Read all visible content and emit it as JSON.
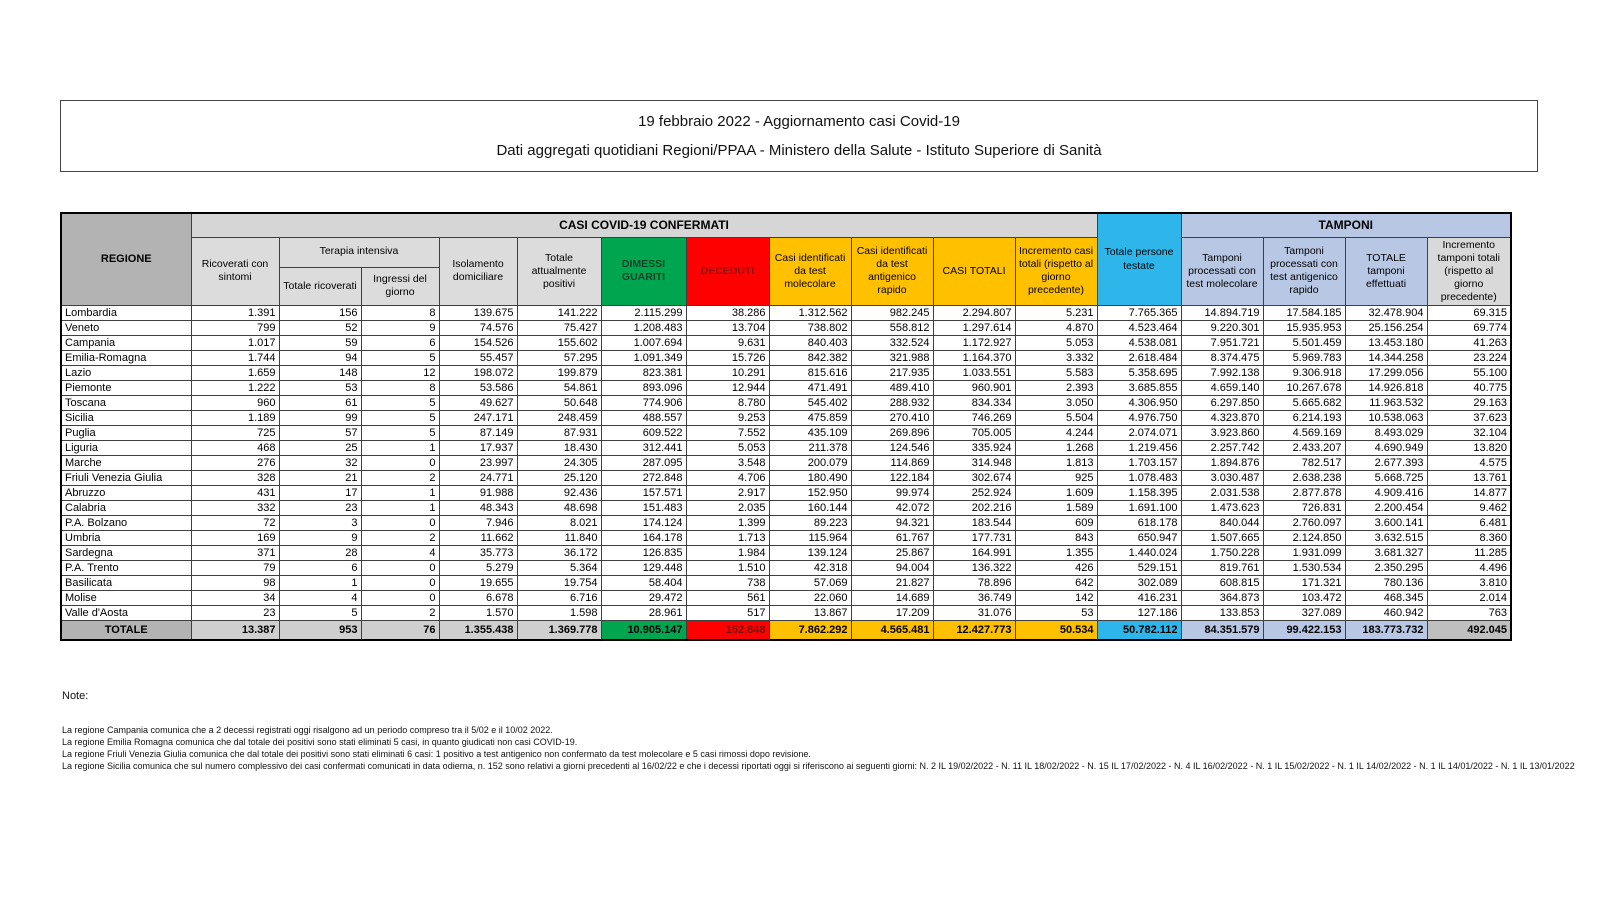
{
  "title": {
    "line1": "19 febbraio 2022 - Aggiornamento casi Covid-19",
    "line2": "Dati aggregati quotidiani Regioni/PPAA - Ministero della Salute - Istituto Superiore di Sanità"
  },
  "colors": {
    "recovered_green": "#00a550",
    "deceased_red": "#ff0000",
    "deceased_text_dark_red": "#8b1410",
    "cases_yellow": "#ffc000",
    "tested_cyan": "#2eb6ea",
    "tamponi_light_blue": "#b7c7e4",
    "band_gray": "#d6d6d6",
    "region_header_gray": "#b3b3b3"
  },
  "table": {
    "region_header": "REGIONE",
    "group_headers": {
      "confirmed": "CASI COVID-19 CONFERMATI",
      "intensive": "Terapia intensiva",
      "tamponi": "TAMPONI"
    },
    "columns": [
      "Ricoverati con sintomi",
      "Totale ricoverati",
      "Ingressi del giorno",
      "Isolamento domiciliare",
      "Totale attualmente positivi",
      "DIMESSI GUARITI",
      "DECEDUTI",
      "Casi identificati da test molecolare",
      "Casi identificati da test antigenico rapido",
      "CASI TOTALI",
      "Incremento casi totali (rispetto al giorno precedente)",
      "Totale persone testate",
      "Tamponi processati con test molecolare",
      "Tamponi processati con test antigenico rapido",
      "TOTALE tamponi effettuati",
      "Incremento tamponi totali (rispetto al giorno precedente)"
    ],
    "rows": [
      {
        "region": "Lombardia",
        "values": [
          "1.391",
          "156",
          "8",
          "139.675",
          "141.222",
          "2.115.299",
          "38.286",
          "1.312.562",
          "982.245",
          "2.294.807",
          "5.231",
          "7.765.365",
          "14.894.719",
          "17.584.185",
          "32.478.904",
          "69.315"
        ]
      },
      {
        "region": "Veneto",
        "values": [
          "799",
          "52",
          "9",
          "74.576",
          "75.427",
          "1.208.483",
          "13.704",
          "738.802",
          "558.812",
          "1.297.614",
          "4.870",
          "4.523.464",
          "9.220.301",
          "15.935.953",
          "25.156.254",
          "69.774"
        ]
      },
      {
        "region": "Campania",
        "values": [
          "1.017",
          "59",
          "6",
          "154.526",
          "155.602",
          "1.007.694",
          "9.631",
          "840.403",
          "332.524",
          "1.172.927",
          "5.053",
          "4.538.081",
          "7.951.721",
          "5.501.459",
          "13.453.180",
          "41.263"
        ]
      },
      {
        "region": "Emilia-Romagna",
        "values": [
          "1.744",
          "94",
          "5",
          "55.457",
          "57.295",
          "1.091.349",
          "15.726",
          "842.382",
          "321.988",
          "1.164.370",
          "3.332",
          "2.618.484",
          "8.374.475",
          "5.969.783",
          "14.344.258",
          "23.224"
        ]
      },
      {
        "region": "Lazio",
        "values": [
          "1.659",
          "148",
          "12",
          "198.072",
          "199.879",
          "823.381",
          "10.291",
          "815.616",
          "217.935",
          "1.033.551",
          "5.583",
          "5.358.695",
          "7.992.138",
          "9.306.918",
          "17.299.056",
          "55.100"
        ]
      },
      {
        "region": "Piemonte",
        "values": [
          "1.222",
          "53",
          "8",
          "53.586",
          "54.861",
          "893.096",
          "12.944",
          "471.491",
          "489.410",
          "960.901",
          "2.393",
          "3.685.855",
          "4.659.140",
          "10.267.678",
          "14.926.818",
          "40.775"
        ]
      },
      {
        "region": "Toscana",
        "values": [
          "960",
          "61",
          "5",
          "49.627",
          "50.648",
          "774.906",
          "8.780",
          "545.402",
          "288.932",
          "834.334",
          "3.050",
          "4.306.950",
          "6.297.850",
          "5.665.682",
          "11.963.532",
          "29.163"
        ]
      },
      {
        "region": "Sicilia",
        "values": [
          "1.189",
          "99",
          "5",
          "247.171",
          "248.459",
          "488.557",
          "9.253",
          "475.859",
          "270.410",
          "746.269",
          "5.504",
          "4.976.750",
          "4.323.870",
          "6.214.193",
          "10.538.063",
          "37.623"
        ]
      },
      {
        "region": "Puglia",
        "values": [
          "725",
          "57",
          "5",
          "87.149",
          "87.931",
          "609.522",
          "7.552",
          "435.109",
          "269.896",
          "705.005",
          "4.244",
          "2.074.071",
          "3.923.860",
          "4.569.169",
          "8.493.029",
          "32.104"
        ]
      },
      {
        "region": "Liguria",
        "values": [
          "468",
          "25",
          "1",
          "17.937",
          "18.430",
          "312.441",
          "5.053",
          "211.378",
          "124.546",
          "335.924",
          "1.268",
          "1.219.456",
          "2.257.742",
          "2.433.207",
          "4.690.949",
          "13.820"
        ]
      },
      {
        "region": "Marche",
        "values": [
          "276",
          "32",
          "0",
          "23.997",
          "24.305",
          "287.095",
          "3.548",
          "200.079",
          "114.869",
          "314.948",
          "1.813",
          "1.703.157",
          "1.894.876",
          "782.517",
          "2.677.393",
          "4.575"
        ]
      },
      {
        "region": "Friuli Venezia Giulia",
        "values": [
          "328",
          "21",
          "2",
          "24.771",
          "25.120",
          "272.848",
          "4.706",
          "180.490",
          "122.184",
          "302.674",
          "925",
          "1.078.483",
          "3.030.487",
          "2.638.238",
          "5.668.725",
          "13.761"
        ]
      },
      {
        "region": "Abruzzo",
        "values": [
          "431",
          "17",
          "1",
          "91.988",
          "92.436",
          "157.571",
          "2.917",
          "152.950",
          "99.974",
          "252.924",
          "1.609",
          "1.158.395",
          "2.031.538",
          "2.877.878",
          "4.909.416",
          "14.877"
        ]
      },
      {
        "region": "Calabria",
        "values": [
          "332",
          "23",
          "1",
          "48.343",
          "48.698",
          "151.483",
          "2.035",
          "160.144",
          "42.072",
          "202.216",
          "1.589",
          "1.691.100",
          "1.473.623",
          "726.831",
          "2.200.454",
          "9.462"
        ]
      },
      {
        "region": "P.A. Bolzano",
        "values": [
          "72",
          "3",
          "0",
          "7.946",
          "8.021",
          "174.124",
          "1.399",
          "89.223",
          "94.321",
          "183.544",
          "609",
          "618.178",
          "840.044",
          "2.760.097",
          "3.600.141",
          "6.481"
        ]
      },
      {
        "region": "Umbria",
        "values": [
          "169",
          "9",
          "2",
          "11.662",
          "11.840",
          "164.178",
          "1.713",
          "115.964",
          "61.767",
          "177.731",
          "843",
          "650.947",
          "1.507.665",
          "2.124.850",
          "3.632.515",
          "8.360"
        ]
      },
      {
        "region": "Sardegna",
        "values": [
          "371",
          "28",
          "4",
          "35.773",
          "36.172",
          "126.835",
          "1.984",
          "139.124",
          "25.867",
          "164.991",
          "1.355",
          "1.440.024",
          "1.750.228",
          "1.931.099",
          "3.681.327",
          "11.285"
        ]
      },
      {
        "region": "P.A. Trento",
        "values": [
          "79",
          "6",
          "0",
          "5.279",
          "5.364",
          "129.448",
          "1.510",
          "42.318",
          "94.004",
          "136.322",
          "426",
          "529.151",
          "819.761",
          "1.530.534",
          "2.350.295",
          "4.496"
        ]
      },
      {
        "region": "Basilicata",
        "values": [
          "98",
          "1",
          "0",
          "19.655",
          "19.754",
          "58.404",
          "738",
          "57.069",
          "21.827",
          "78.896",
          "642",
          "302.089",
          "608.815",
          "171.321",
          "780.136",
          "3.810"
        ]
      },
      {
        "region": "Molise",
        "values": [
          "34",
          "4",
          "0",
          "6.678",
          "6.716",
          "29.472",
          "561",
          "22.060",
          "14.689",
          "36.749",
          "142",
          "416.231",
          "364.873",
          "103.472",
          "468.345",
          "2.014"
        ]
      },
      {
        "region": "Valle d'Aosta",
        "values": [
          "23",
          "5",
          "2",
          "1.570",
          "1.598",
          "28.961",
          "517",
          "13.867",
          "17.209",
          "31.076",
          "53",
          "127.186",
          "133.853",
          "327.089",
          "460.942",
          "763"
        ]
      }
    ],
    "total_row": {
      "region": "TOTALE",
      "values": [
        "13.387",
        "953",
        "76",
        "1.355.438",
        "1.369.778",
        "10.905.147",
        "152.848",
        "7.862.292",
        "4.565.481",
        "12.427.773",
        "50.534",
        "50.782.112",
        "84.351.579",
        "99.422.153",
        "183.773.732",
        "492.045"
      ]
    }
  },
  "notes": {
    "heading": "Note:",
    "items": [
      "La regione Campania comunica che a 2 decessi registrati oggi risalgono ad un periodo compreso tra il 5/02 e il 10/02 2022.",
      "La regione Emilia Romagna comunica che dal totale dei positivi sono stati eliminati 5 casi, in quanto giudicati non casi COVID-19.",
      "La regione Friuli Venezia Giulia comunica che dal totale dei positivi sono stati eliminati 6 casi: 1 positivo a test antigenico non confermato da test molecolare e 5 casi rimossi dopo revisione.",
      "La regione Sicilia comunica che sul numero complessivo dei casi confermati comunicati in data odierna, n. 152 sono relativi a giorni precedenti al 16/02/22 e che i decessi riportati oggi si riferiscono ai seguenti giorni: N. 2 IL 19/02/2022 - N. 11 IL 18/02/2022 - N. 15 IL 17/02/2022 - N. 4 IL 16/02/2022 - N. 1 IL 15/02/2022 - N. 1 IL 14/02/2022 - N. 1 IL 14/01/2022 - N. 1 IL 13/01/2022"
    ]
  }
}
